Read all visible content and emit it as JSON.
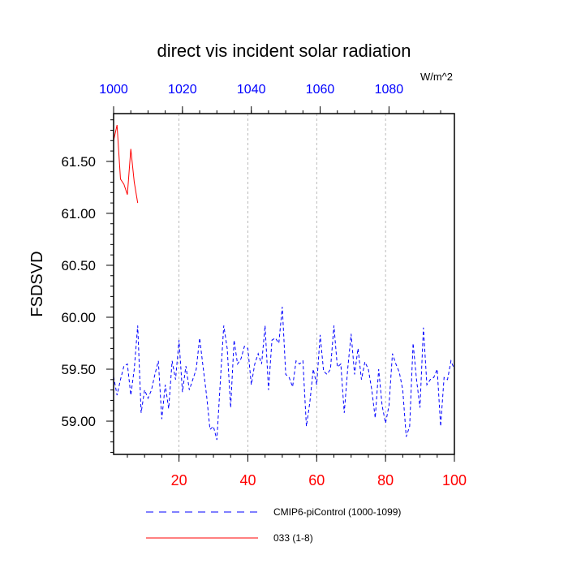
{
  "chart_data": {
    "type": "line",
    "title": "direct vis incident solar radiation",
    "ylabel": "FSDSVD",
    "units": "W/m^2",
    "xlim": [
      1,
      100
    ],
    "ylim": [
      58.68,
      61.96
    ],
    "bottom_axis": {
      "ticks": [
        20,
        40,
        60,
        80,
        100
      ],
      "tick_labels": [
        "20",
        "40",
        "60",
        "80",
        "100"
      ],
      "color": "#ff0000"
    },
    "top_axis": {
      "ticks": [
        1000,
        1020,
        1040,
        1060,
        1080
      ],
      "tick_labels": [
        "1000",
        "1020",
        "1040",
        "1060",
        "1080"
      ],
      "color": "#0000ff"
    },
    "y_ticks": [
      59.0,
      59.5,
      60.0,
      60.5,
      61.0,
      61.5
    ],
    "y_tick_labels": [
      "59.00",
      "59.50",
      "60.00",
      "60.50",
      "61.00",
      "61.50"
    ],
    "grid": "vertical-dashed",
    "series": [
      {
        "name": "CMIP6-piControl (1000-1099)",
        "color": "#0000ff",
        "style": "dashed",
        "x": [
          1,
          2,
          3,
          4,
          5,
          6,
          7,
          8,
          9,
          10,
          11,
          12,
          13,
          14,
          15,
          16,
          17,
          18,
          19,
          20,
          21,
          22,
          23,
          24,
          25,
          26,
          27,
          28,
          29,
          30,
          31,
          32,
          33,
          34,
          35,
          36,
          37,
          38,
          39,
          40,
          41,
          42,
          43,
          44,
          45,
          46,
          47,
          48,
          49,
          50,
          51,
          52,
          53,
          54,
          55,
          56,
          57,
          58,
          59,
          60,
          61,
          62,
          63,
          64,
          65,
          66,
          67,
          68,
          69,
          70,
          71,
          72,
          73,
          74,
          75,
          76,
          77,
          78,
          79,
          80,
          81,
          82,
          83,
          84,
          85,
          86,
          87,
          88,
          89,
          90,
          91,
          92,
          93,
          94,
          95,
          96,
          97,
          98,
          99,
          100
        ],
        "values": [
          59.43,
          59.25,
          59.4,
          59.53,
          59.55,
          59.25,
          59.5,
          59.92,
          59.08,
          59.3,
          59.22,
          59.3,
          59.45,
          59.58,
          59.02,
          59.35,
          59.12,
          59.58,
          59.4,
          59.78,
          59.28,
          59.53,
          59.3,
          59.4,
          59.5,
          59.8,
          59.52,
          59.25,
          58.92,
          58.95,
          58.82,
          59.38,
          59.92,
          59.7,
          59.13,
          59.78,
          59.55,
          59.6,
          59.72,
          59.7,
          59.35,
          59.55,
          59.65,
          59.55,
          59.92,
          59.3,
          59.78,
          59.8,
          59.75,
          60.1,
          59.45,
          59.42,
          59.33,
          59.58,
          59.55,
          59.58,
          58.95,
          59.18,
          59.5,
          59.35,
          59.83,
          59.48,
          59.45,
          59.5,
          59.92,
          59.52,
          59.55,
          59.08,
          59.5,
          59.84,
          59.45,
          59.7,
          59.4,
          59.57,
          59.5,
          59.3,
          59.03,
          59.5,
          59.15,
          58.98,
          59.15,
          59.65,
          59.55,
          59.47,
          59.3,
          58.85,
          58.95,
          59.75,
          59.4,
          59.13,
          59.9,
          59.35,
          59.4,
          59.42,
          59.5,
          58.95,
          59.42,
          59.4,
          59.58,
          59.5
        ]
      },
      {
        "name": "033 (1-8)",
        "color": "#ff0000",
        "style": "solid",
        "x": [
          1,
          2,
          3,
          4,
          5,
          6,
          7,
          8
        ],
        "values": [
          61.7,
          61.85,
          61.33,
          61.28,
          61.18,
          61.62,
          61.3,
          61.1
        ]
      }
    ]
  }
}
